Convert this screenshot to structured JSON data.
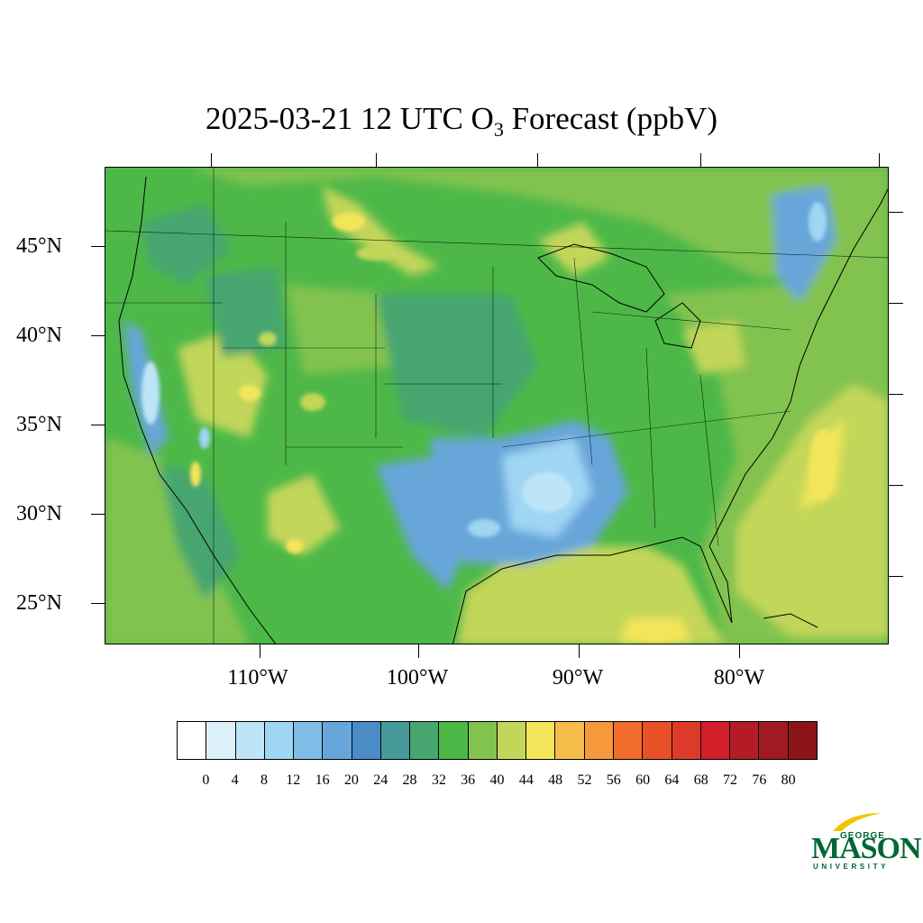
{
  "title": {
    "prefix": "2025-03-21 12 UTC O",
    "subscript": "3",
    "suffix": " Forecast (ppbV)"
  },
  "map": {
    "region": "Contiguous United States",
    "variable": "O3",
    "units": "ppbV",
    "lat_labels": [
      "45°N",
      "40°N",
      "35°N",
      "30°N",
      "25°N"
    ],
    "lon_labels": [
      "110°W",
      "100°W",
      "90°W",
      "80°W"
    ]
  },
  "colorbar": {
    "labels": [
      "0",
      "4",
      "8",
      "12",
      "16",
      "20",
      "24",
      "28",
      "32",
      "36",
      "40",
      "44",
      "48",
      "52",
      "56",
      "60",
      "64",
      "68",
      "72",
      "76",
      "80"
    ],
    "colors": [
      "#ffffff",
      "#dcf0fa",
      "#bde5f7",
      "#9fd6f3",
      "#80bde6",
      "#67a6da",
      "#4a8bc8",
      "#47999a",
      "#47a66f",
      "#4db848",
      "#82c350",
      "#c2d65a",
      "#f3e55a",
      "#f7bd4a",
      "#f5993c",
      "#f26d2c",
      "#e8502a",
      "#de3a2a",
      "#d21f2a",
      "#b31c24",
      "#a01a22",
      "#8c1419"
    ]
  },
  "logo": {
    "top": "GEORGE",
    "main": "MASON",
    "bottom": "UNIVERSITY",
    "color": "#006633",
    "accent": "#f2c400"
  }
}
